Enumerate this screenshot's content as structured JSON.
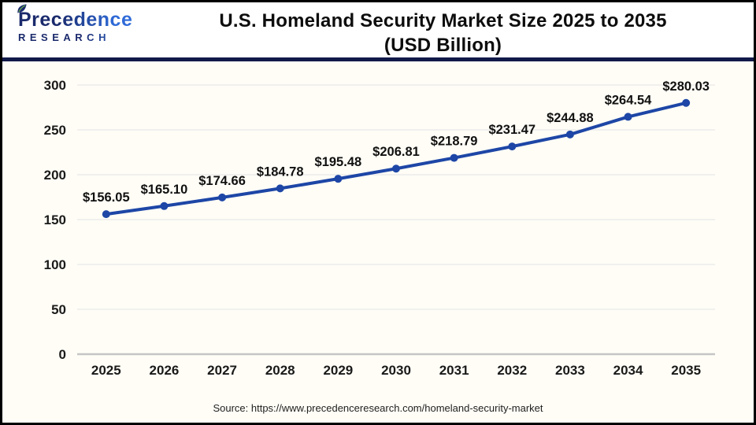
{
  "header": {
    "logo": {
      "line1": "Precedence",
      "line2": "RESEARCH"
    },
    "title_line1": "U.S. Homeland Security Market Size 2025 to 2035",
    "title_line2": "(USD Billion)"
  },
  "footer": {
    "source": "Source: https://www.precedenceresearch.com/homeland-security-market"
  },
  "colors": {
    "line": "#1d46a6",
    "marker": "#1d46a6",
    "grid": "#ebebeb",
    "zero_axis": "#c6c6c6",
    "tick_label": "#1a1a1a",
    "data_label": "#111111",
    "separator": "#121a4a",
    "chart_bg": "#fffdf6",
    "header_bg": "#ffffff"
  },
  "chart_data": {
    "type": "line",
    "title": "U.S. Homeland Security Market Size 2025 to 2035 (USD Billion)",
    "xlabel": "",
    "ylabel": "",
    "categories": [
      "2025",
      "2026",
      "2027",
      "2028",
      "2029",
      "2030",
      "2031",
      "2032",
      "2033",
      "2034",
      "2035"
    ],
    "series": [
      {
        "name": "U.S. Homeland Security Market Size (USD Billion)",
        "values": [
          156.05,
          165.1,
          174.66,
          184.78,
          195.48,
          206.81,
          218.79,
          231.47,
          244.88,
          264.54,
          280.03
        ]
      }
    ],
    "value_labels": [
      "$156.05",
      "$165.10",
      "$174.66",
      "$184.78",
      "$195.48",
      "$206.81",
      "$218.79",
      "$231.47",
      "$244.88",
      "$264.54",
      "$280.03"
    ],
    "ylim": [
      0,
      300
    ],
    "yticks": [
      0,
      50,
      100,
      150,
      200,
      250,
      300
    ],
    "grid": "horizontal",
    "legend": "none",
    "marker": "circle"
  }
}
